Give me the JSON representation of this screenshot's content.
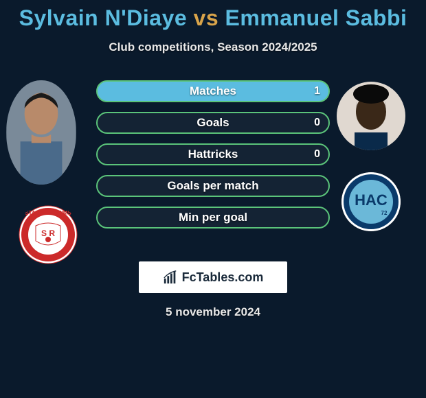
{
  "title": {
    "player1": "Sylvain N'Diaye",
    "vs": "vs",
    "player2": "Emmanuel Sabbi",
    "color_players": "#5bbce0",
    "color_vs": "#d9a44a"
  },
  "subtitle": "Club competitions, Season 2024/2025",
  "bars": {
    "border_color": "#5bc47a",
    "fill_left_color": "#d9a44a",
    "fill_right_color": "#5bbce0",
    "items": [
      {
        "label": "Matches",
        "left_val": "",
        "right_val": "1",
        "left_pct": 0,
        "right_pct": 100
      },
      {
        "label": "Goals",
        "left_val": "",
        "right_val": "0",
        "left_pct": 0,
        "right_pct": 0
      },
      {
        "label": "Hattricks",
        "left_val": "",
        "right_val": "0",
        "left_pct": 0,
        "right_pct": 0
      },
      {
        "label": "Goals per match",
        "left_val": "",
        "right_val": "",
        "left_pct": 0,
        "right_pct": 0
      },
      {
        "label": "Min per goal",
        "left_val": "",
        "right_val": "",
        "left_pct": 0,
        "right_pct": 0
      }
    ]
  },
  "badge": {
    "text": "FcTables.com"
  },
  "date": "5 november 2024",
  "background": "#0a1a2c"
}
